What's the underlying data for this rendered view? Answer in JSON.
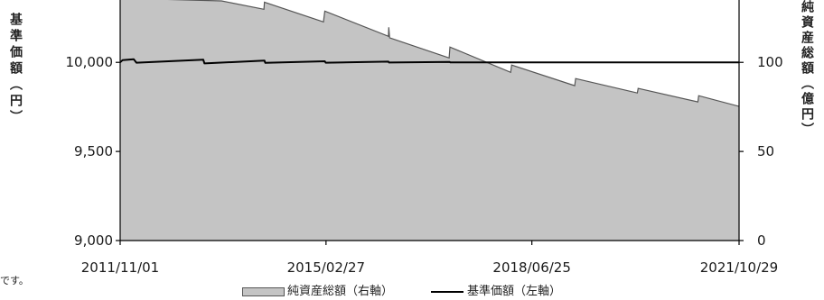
{
  "chart_data": {
    "type": "area",
    "x_axis": {
      "ticks": [
        "2011/11/01",
        "2015/02/27",
        "2018/06/25",
        "2021/10/29"
      ],
      "range": [
        "2011/11/01",
        "2021/10/29"
      ]
    },
    "y_left": {
      "label": "基準価額（円）",
      "tick_labels": [
        "10,000",
        "9,500",
        "9,000"
      ],
      "tick_values": [
        10000,
        9500,
        9000
      ],
      "range": [
        9000,
        10350
      ]
    },
    "y_right": {
      "label": "純資産総額（億円）",
      "tick_labels": [
        "100",
        "50",
        "0"
      ],
      "tick_values": [
        100,
        50,
        0
      ],
      "range": [
        0,
        135
      ]
    },
    "series": [
      {
        "name": "純資産総額（右軸）",
        "type": "area",
        "axis": "right",
        "color": "#c4c4c4",
        "outline_color": "#555555",
        "points": [
          [
            "2011/11/01",
            136
          ],
          [
            "2013/06/21",
            134.5
          ],
          [
            "2014/02/26",
            129.8
          ],
          [
            "2014/03/01",
            133.8
          ],
          [
            "2015/02/12",
            122.7
          ],
          [
            "2015/02/20",
            128.8
          ],
          [
            "2016/03/01",
            114.6
          ],
          [
            "2016/03/03",
            119.7
          ],
          [
            "2016/03/08",
            113.8
          ],
          [
            "2017/02/22",
            102.5
          ],
          [
            "2017/02/27",
            108.6
          ],
          [
            "2018/02/20",
            94.4
          ],
          [
            "2018/02/26",
            98.5
          ],
          [
            "2019/03/05",
            86.9
          ],
          [
            "2019/03/10",
            90.9
          ],
          [
            "2020/03/08",
            82.8
          ],
          [
            "2020/03/13",
            85.4
          ],
          [
            "2021/02/28",
            77.8
          ],
          [
            "2021/03/05",
            81.3
          ],
          [
            "2021/10/29",
            75.3
          ]
        ]
      },
      {
        "name": "基準価額（左軸）",
        "type": "line",
        "axis": "left",
        "color": "#000000",
        "points": [
          [
            "2011/11/01",
            10000
          ],
          [
            "2011/11/15",
            10012
          ],
          [
            "2012/01/20",
            10018
          ],
          [
            "2012/02/05",
            9998
          ],
          [
            "2013/03/05",
            10015
          ],
          [
            "2013/03/12",
            9994
          ],
          [
            "2014/03/01",
            10010
          ],
          [
            "2014/03/06",
            9997
          ],
          [
            "2015/02/20",
            10006
          ],
          [
            "2015/02/25",
            9998
          ],
          [
            "2016/03/01",
            10004
          ],
          [
            "2016/03/05",
            9999
          ],
          [
            "2017/02/25",
            10002
          ],
          [
            "2017/03/01",
            10000
          ],
          [
            "2021/10/29",
            10000
          ]
        ]
      }
    ],
    "legend": "bottom",
    "grid": false
  },
  "footnote": "です。"
}
